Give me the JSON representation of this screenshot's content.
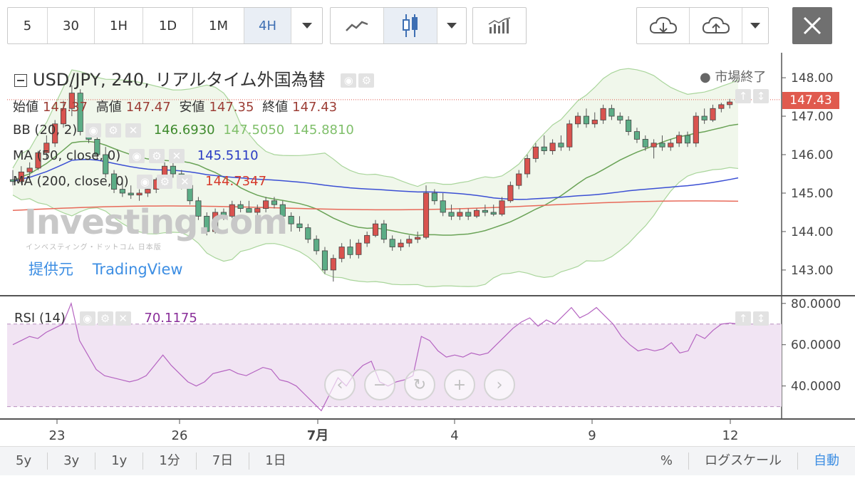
{
  "toolbar": {
    "intervals": [
      "5",
      "30",
      "1H",
      "1D",
      "1M",
      "4H"
    ],
    "active_interval": "4H",
    "icons": [
      "line-chart-icon",
      "candlestick-icon",
      "indicators-icon",
      "cloud-download-icon",
      "cloud-upload-icon",
      "close-icon"
    ]
  },
  "header": {
    "title": "USD/JPY, 240, リアルタイム外国為替",
    "market_status": "● 市場終了"
  },
  "ohlc": {
    "open_label": "始値",
    "open": "147.37",
    "high_label": "高値",
    "high": "147.47",
    "low_label": "安値",
    "low": "147.35",
    "close_label": "終値",
    "close": "147.43"
  },
  "indicators": {
    "bb": {
      "label": "BB (20, 2)",
      "mid": "146.6930",
      "upper": "147.5050",
      "lower": "145.8810"
    },
    "ma50": {
      "label": "MA (50, close, 0)",
      "value": "145.5110"
    },
    "ma200": {
      "label": "MA (200, close, 0)",
      "value": "144.7347"
    },
    "rsi": {
      "label": "RSI (14)",
      "value": "70.1175"
    }
  },
  "branding": {
    "watermark": "Investing.com",
    "watermark_sub": "インベスティング・ドットコム 日本版",
    "provider_label": "提供元",
    "provider_name": "TradingView"
  },
  "price_tag": "147.43",
  "bottom": {
    "ranges": [
      "5y",
      "3y",
      "1y",
      "1分",
      "7日",
      "1日"
    ],
    "right": [
      "%",
      "ログスケール",
      "自動"
    ]
  },
  "colors": {
    "up": "#ffffff",
    "down": "#5cad86",
    "candle_up_fill": "#d9534f",
    "candle_down_fill": "#5cad86",
    "ma50": "#3b4fd4",
    "ma200": "#e86a5a",
    "bb_mid": "#6aa357",
    "bb_band": "#a9d59b",
    "rsi": "#b564c1"
  },
  "chart_data": {
    "type": "candlestick",
    "price_axis": {
      "ticks": [
        148.0,
        147.0,
        146.0,
        145.0,
        144.0,
        143.0
      ],
      "ylim": [
        142.35,
        148.65
      ]
    },
    "rsi_axis": {
      "ticks": [
        80.0,
        60.0,
        40.0
      ],
      "ylim": [
        24,
        82
      ],
      "overbought": 70,
      "oversold": 30
    },
    "x_labels": [
      "23",
      "26",
      "7月",
      "4",
      "9",
      "12"
    ],
    "candles": [
      {
        "o": 145.35,
        "h": 145.6,
        "l": 145.2,
        "c": 145.3
      },
      {
        "o": 145.3,
        "h": 145.7,
        "l": 145.25,
        "c": 145.55
      },
      {
        "o": 145.55,
        "h": 145.8,
        "l": 145.4,
        "c": 145.65
      },
      {
        "o": 145.65,
        "h": 146.1,
        "l": 145.6,
        "c": 146.05
      },
      {
        "o": 146.05,
        "h": 146.5,
        "l": 145.9,
        "c": 146.3
      },
      {
        "o": 146.3,
        "h": 146.9,
        "l": 146.2,
        "c": 146.8
      },
      {
        "o": 146.8,
        "h": 147.4,
        "l": 146.7,
        "c": 147.2
      },
      {
        "o": 147.2,
        "h": 147.8,
        "l": 147.0,
        "c": 147.6
      },
      {
        "o": 147.6,
        "h": 147.7,
        "l": 146.5,
        "c": 146.6
      },
      {
        "o": 146.6,
        "h": 146.8,
        "l": 146.3,
        "c": 146.4
      },
      {
        "o": 146.4,
        "h": 146.5,
        "l": 145.9,
        "c": 146.0
      },
      {
        "o": 146.0,
        "h": 146.2,
        "l": 145.4,
        "c": 145.5
      },
      {
        "o": 145.5,
        "h": 145.6,
        "l": 145.0,
        "c": 145.1
      },
      {
        "o": 145.1,
        "h": 145.3,
        "l": 144.9,
        "c": 145.0
      },
      {
        "o": 145.0,
        "h": 145.2,
        "l": 144.85,
        "c": 144.95
      },
      {
        "o": 144.95,
        "h": 145.1,
        "l": 144.8,
        "c": 145.0
      },
      {
        "o": 145.0,
        "h": 145.2,
        "l": 144.9,
        "c": 145.1
      },
      {
        "o": 145.1,
        "h": 145.4,
        "l": 145.0,
        "c": 145.35
      },
      {
        "o": 145.35,
        "h": 145.8,
        "l": 145.3,
        "c": 145.7
      },
      {
        "o": 145.7,
        "h": 145.9,
        "l": 145.4,
        "c": 145.5
      },
      {
        "o": 145.5,
        "h": 145.6,
        "l": 145.1,
        "c": 145.2
      },
      {
        "o": 145.2,
        "h": 145.3,
        "l": 144.7,
        "c": 144.8
      },
      {
        "o": 144.8,
        "h": 144.9,
        "l": 144.3,
        "c": 144.4
      },
      {
        "o": 144.4,
        "h": 144.5,
        "l": 143.9,
        "c": 144.0
      },
      {
        "o": 144.0,
        "h": 144.6,
        "l": 143.95,
        "c": 144.5
      },
      {
        "o": 144.5,
        "h": 144.6,
        "l": 144.3,
        "c": 144.4
      },
      {
        "o": 144.4,
        "h": 144.8,
        "l": 144.35,
        "c": 144.7
      },
      {
        "o": 144.7,
        "h": 144.8,
        "l": 144.5,
        "c": 144.6
      },
      {
        "o": 144.6,
        "h": 144.8,
        "l": 144.5,
        "c": 144.5
      },
      {
        "o": 144.5,
        "h": 144.7,
        "l": 144.4,
        "c": 144.6
      },
      {
        "o": 144.6,
        "h": 144.9,
        "l": 144.5,
        "c": 144.8
      },
      {
        "o": 144.8,
        "h": 144.9,
        "l": 144.6,
        "c": 144.7
      },
      {
        "o": 144.7,
        "h": 144.8,
        "l": 144.3,
        "c": 144.4
      },
      {
        "o": 144.4,
        "h": 144.5,
        "l": 144.0,
        "c": 144.2
      },
      {
        "o": 144.2,
        "h": 144.4,
        "l": 144.0,
        "c": 144.1
      },
      {
        "o": 144.1,
        "h": 144.2,
        "l": 143.7,
        "c": 143.8
      },
      {
        "o": 143.8,
        "h": 143.9,
        "l": 143.4,
        "c": 143.5
      },
      {
        "o": 143.5,
        "h": 143.6,
        "l": 142.9,
        "c": 143.0
      },
      {
        "o": 143.0,
        "h": 143.4,
        "l": 142.7,
        "c": 143.3
      },
      {
        "o": 143.3,
        "h": 143.7,
        "l": 143.2,
        "c": 143.6
      },
      {
        "o": 143.6,
        "h": 143.8,
        "l": 143.3,
        "c": 143.4
      },
      {
        "o": 143.4,
        "h": 143.8,
        "l": 143.3,
        "c": 143.7
      },
      {
        "o": 143.7,
        "h": 144.0,
        "l": 143.6,
        "c": 143.9
      },
      {
        "o": 143.9,
        "h": 144.3,
        "l": 143.85,
        "c": 144.2
      },
      {
        "o": 144.2,
        "h": 144.3,
        "l": 143.7,
        "c": 143.8
      },
      {
        "o": 143.8,
        "h": 143.9,
        "l": 143.5,
        "c": 143.6
      },
      {
        "o": 143.6,
        "h": 143.8,
        "l": 143.5,
        "c": 143.7
      },
      {
        "o": 143.7,
        "h": 143.9,
        "l": 143.6,
        "c": 143.8
      },
      {
        "o": 143.8,
        "h": 144.0,
        "l": 143.7,
        "c": 143.85
      },
      {
        "o": 143.85,
        "h": 145.2,
        "l": 143.8,
        "c": 145.0
      },
      {
        "o": 145.0,
        "h": 145.1,
        "l": 144.7,
        "c": 144.8
      },
      {
        "o": 144.8,
        "h": 145.0,
        "l": 144.4,
        "c": 144.5
      },
      {
        "o": 144.5,
        "h": 144.7,
        "l": 144.3,
        "c": 144.4
      },
      {
        "o": 144.4,
        "h": 144.6,
        "l": 144.3,
        "c": 144.5
      },
      {
        "o": 144.5,
        "h": 144.6,
        "l": 144.3,
        "c": 144.4
      },
      {
        "o": 144.4,
        "h": 144.6,
        "l": 144.35,
        "c": 144.55
      },
      {
        "o": 144.55,
        "h": 144.7,
        "l": 144.4,
        "c": 144.5
      },
      {
        "o": 144.5,
        "h": 144.7,
        "l": 144.4,
        "c": 144.45
      },
      {
        "o": 144.45,
        "h": 144.9,
        "l": 144.4,
        "c": 144.8
      },
      {
        "o": 144.8,
        "h": 145.3,
        "l": 144.75,
        "c": 145.2
      },
      {
        "o": 145.2,
        "h": 145.6,
        "l": 145.1,
        "c": 145.5
      },
      {
        "o": 145.5,
        "h": 146.0,
        "l": 145.4,
        "c": 145.9
      },
      {
        "o": 145.9,
        "h": 146.3,
        "l": 145.8,
        "c": 146.2
      },
      {
        "o": 146.2,
        "h": 146.5,
        "l": 146.0,
        "c": 146.1
      },
      {
        "o": 146.1,
        "h": 146.4,
        "l": 146.0,
        "c": 146.3
      },
      {
        "o": 146.3,
        "h": 146.5,
        "l": 146.1,
        "c": 146.2
      },
      {
        "o": 146.2,
        "h": 146.9,
        "l": 146.1,
        "c": 146.8
      },
      {
        "o": 146.8,
        "h": 147.1,
        "l": 146.7,
        "c": 147.0
      },
      {
        "o": 147.0,
        "h": 147.2,
        "l": 146.7,
        "c": 146.8
      },
      {
        "o": 146.8,
        "h": 147.1,
        "l": 146.7,
        "c": 146.9
      },
      {
        "o": 146.9,
        "h": 147.3,
        "l": 146.8,
        "c": 147.2
      },
      {
        "o": 147.2,
        "h": 147.3,
        "l": 146.9,
        "c": 147.0
      },
      {
        "o": 147.0,
        "h": 147.1,
        "l": 146.8,
        "c": 146.9
      },
      {
        "o": 146.9,
        "h": 147.0,
        "l": 146.5,
        "c": 146.6
      },
      {
        "o": 146.6,
        "h": 146.7,
        "l": 146.3,
        "c": 146.4
      },
      {
        "o": 146.4,
        "h": 146.5,
        "l": 146.1,
        "c": 146.2
      },
      {
        "o": 146.2,
        "h": 146.4,
        "l": 145.9,
        "c": 146.3
      },
      {
        "o": 146.3,
        "h": 146.5,
        "l": 146.1,
        "c": 146.2
      },
      {
        "o": 146.2,
        "h": 146.4,
        "l": 146.1,
        "c": 146.3
      },
      {
        "o": 146.3,
        "h": 146.6,
        "l": 146.2,
        "c": 146.5
      },
      {
        "o": 146.5,
        "h": 146.6,
        "l": 146.2,
        "c": 146.3
      },
      {
        "o": 146.3,
        "h": 147.1,
        "l": 146.2,
        "c": 147.0
      },
      {
        "o": 147.0,
        "h": 147.2,
        "l": 146.8,
        "c": 146.9
      },
      {
        "o": 146.9,
        "h": 147.3,
        "l": 146.85,
        "c": 147.2
      },
      {
        "o": 147.2,
        "h": 147.35,
        "l": 147.1,
        "c": 147.3
      },
      {
        "o": 147.3,
        "h": 147.45,
        "l": 147.2,
        "c": 147.37
      },
      {
        "o": 147.37,
        "h": 147.47,
        "l": 147.35,
        "c": 147.43
      }
    ],
    "rsi": [
      60,
      62,
      64,
      63,
      66,
      68,
      70,
      80,
      62,
      55,
      48,
      45,
      44,
      43,
      42,
      43,
      45,
      50,
      55,
      50,
      46,
      42,
      40,
      42,
      46,
      47,
      48,
      46,
      45,
      47,
      49,
      48,
      43,
      42,
      40,
      36,
      32,
      28,
      36,
      44,
      40,
      46,
      50,
      52,
      42,
      40,
      42,
      43,
      45,
      64,
      62,
      57,
      54,
      55,
      54,
      56,
      55,
      56,
      60,
      64,
      68,
      71,
      73,
      69,
      72,
      70,
      74,
      78,
      73,
      75,
      78,
      74,
      70,
      64,
      60,
      57,
      58,
      57,
      58,
      61,
      56,
      57,
      65,
      63,
      67,
      70,
      70.5,
      70.1
    ]
  }
}
